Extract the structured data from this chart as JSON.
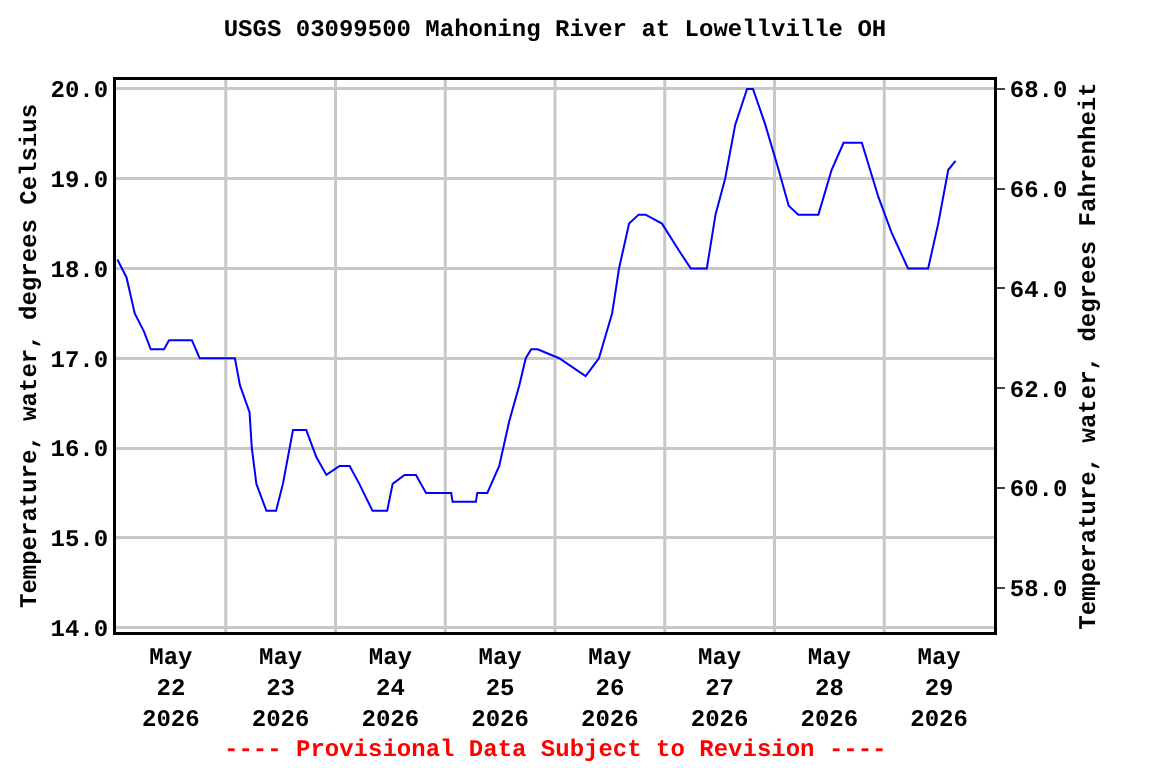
{
  "chart_data": {
    "type": "line",
    "title": "USGS 03099500 Mahoning River at Lowellville OH",
    "ylabel": "Temperature, water, degrees Celsius",
    "y2label": "Temperature, water, degrees Fahrenheit",
    "annotations": [
      "---- Provisional Data Subject to Revision ----"
    ],
    "x": [
      "2026-05-22T00:18",
      "2026-05-22T02:18",
      "2026-05-22T04:06",
      "2026-05-22T06:06",
      "2026-05-22T07:36",
      "2026-05-22T10:30",
      "2026-05-22T11:36",
      "2026-05-22T16:36",
      "2026-05-22T18:18",
      "2026-05-23T02:00",
      "2026-05-23T03:06",
      "2026-05-23T05:12",
      "2026-05-23T05:42",
      "2026-05-23T06:42",
      "2026-05-23T08:54",
      "2026-05-23T11:00",
      "2026-05-23T12:30",
      "2026-05-23T14:42",
      "2026-05-23T17:36",
      "2026-05-23T19:48",
      "2026-05-23T22:00",
      "2026-05-24T00:54",
      "2026-05-24T03:06",
      "2026-05-24T05:12",
      "2026-05-24T08:06",
      "2026-05-24T11:18",
      "2026-05-24T12:30",
      "2026-05-24T15:06",
      "2026-05-24T17:36",
      "2026-05-24T19:48",
      "2026-05-25T01:18",
      "2026-05-25T01:36",
      "2026-05-25T06:42",
      "2026-05-25T07:00",
      "2026-05-25T09:12",
      "2026-05-25T11:48",
      "2026-05-25T14:00",
      "2026-05-25T16:12",
      "2026-05-25T17:36",
      "2026-05-25T18:48",
      "2026-05-25T20:12",
      "2026-05-26T00:54",
      "2026-05-26T06:42",
      "2026-05-26T09:36",
      "2026-05-26T12:30",
      "2026-05-26T14:00",
      "2026-05-26T16:12",
      "2026-05-26T18:18",
      "2026-05-26T19:48",
      "2026-05-26T23:24",
      "2026-05-27T03:06",
      "2026-05-27T05:42",
      "2026-05-27T09:12",
      "2026-05-27T11:06",
      "2026-05-27T13:12",
      "2026-05-27T15:24",
      "2026-05-27T18:00",
      "2026-05-27T19:18",
      "2026-05-27T22:00",
      "2026-05-28T00:54",
      "2026-05-28T03:06",
      "2026-05-28T05:12",
      "2026-05-28T09:36",
      "2026-05-28T12:30",
      "2026-05-28T15:06",
      "2026-05-28T19:06",
      "2026-05-28T22:42",
      "2026-05-29T01:36",
      "2026-05-29T05:12",
      "2026-05-29T09:36",
      "2026-05-29T11:48",
      "2026-05-29T14:00",
      "2026-05-29T15:36"
    ],
    "series": [
      {
        "color": "#0000ff",
        "values": [
          18.1,
          17.9,
          17.5,
          17.3,
          17.1,
          17.1,
          17.2,
          17.2,
          17.0,
          17.0,
          16.7,
          16.4,
          16.0,
          15.6,
          15.3,
          15.3,
          15.6,
          16.2,
          16.2,
          15.9,
          15.7,
          15.8,
          15.8,
          15.6,
          15.3,
          15.3,
          15.6,
          15.7,
          15.7,
          15.5,
          15.5,
          15.4,
          15.4,
          15.5,
          15.5,
          15.8,
          16.3,
          16.7,
          17.0,
          17.1,
          17.1,
          17.0,
          16.8,
          17.0,
          17.5,
          18.0,
          18.5,
          18.6,
          18.6,
          18.5,
          18.2,
          18.0,
          18.0,
          18.6,
          19.0,
          19.6,
          20.0,
          20.0,
          19.6,
          19.1,
          18.7,
          18.6,
          18.6,
          19.1,
          19.4,
          19.4,
          18.8,
          18.4,
          18.0,
          18.0,
          18.5,
          19.1,
          19.2
        ]
      }
    ],
    "xlim": [
      "2026-05-22T00:00",
      "2026-05-30T00:00"
    ],
    "xticks": [
      {
        "value": "2026-05-22T12:00",
        "label": "May 22 2026"
      },
      {
        "value": "2026-05-23T00:00",
        "label": null
      },
      {
        "value": "2026-05-23T12:00",
        "label": "May 23 2026"
      },
      {
        "value": "2026-05-24T00:00",
        "label": null
      },
      {
        "value": "2026-05-24T12:00",
        "label": "May 24 2026"
      },
      {
        "value": "2026-05-25T00:00",
        "label": null
      },
      {
        "value": "2026-05-25T12:00",
        "label": "May 25 2026"
      },
      {
        "value": "2026-05-26T00:00",
        "label": null
      },
      {
        "value": "2026-05-26T12:00",
        "label": "May 26 2026"
      },
      {
        "value": "2026-05-27T00:00",
        "label": null
      },
      {
        "value": "2026-05-27T12:00",
        "label": "May 27 2026"
      },
      {
        "value": "2026-05-28T00:00",
        "label": null
      },
      {
        "value": "2026-05-28T12:00",
        "label": "May 28 2026"
      },
      {
        "value": "2026-05-29T00:00",
        "label": null
      },
      {
        "value": "2026-05-29T12:00",
        "label": "May 29 2026"
      }
    ],
    "ylim": [
      13.95,
      20.1
    ],
    "yticks": [
      {
        "value": 14,
        "label": "14.0"
      },
      {
        "value": 15,
        "label": "15.0"
      },
      {
        "value": 16,
        "label": "16.0"
      },
      {
        "value": 17,
        "label": "17.0"
      },
      {
        "value": 18,
        "label": "18.0"
      },
      {
        "value": 19,
        "label": "19.0"
      },
      {
        "value": 20,
        "label": "20.0"
      }
    ],
    "y2lim": [
      57.11,
      68.18
    ],
    "y2ticks": [
      {
        "value": 58,
        "label": "58.0"
      },
      {
        "value": 60,
        "label": "60.0"
      },
      {
        "value": 62,
        "label": "62.0"
      },
      {
        "value": 64,
        "label": "64.0"
      },
      {
        "value": 66,
        "label": "66.0"
      },
      {
        "value": 68,
        "label": "68.0"
      }
    ],
    "grid": true,
    "line_style": "solid",
    "marker": "none"
  }
}
